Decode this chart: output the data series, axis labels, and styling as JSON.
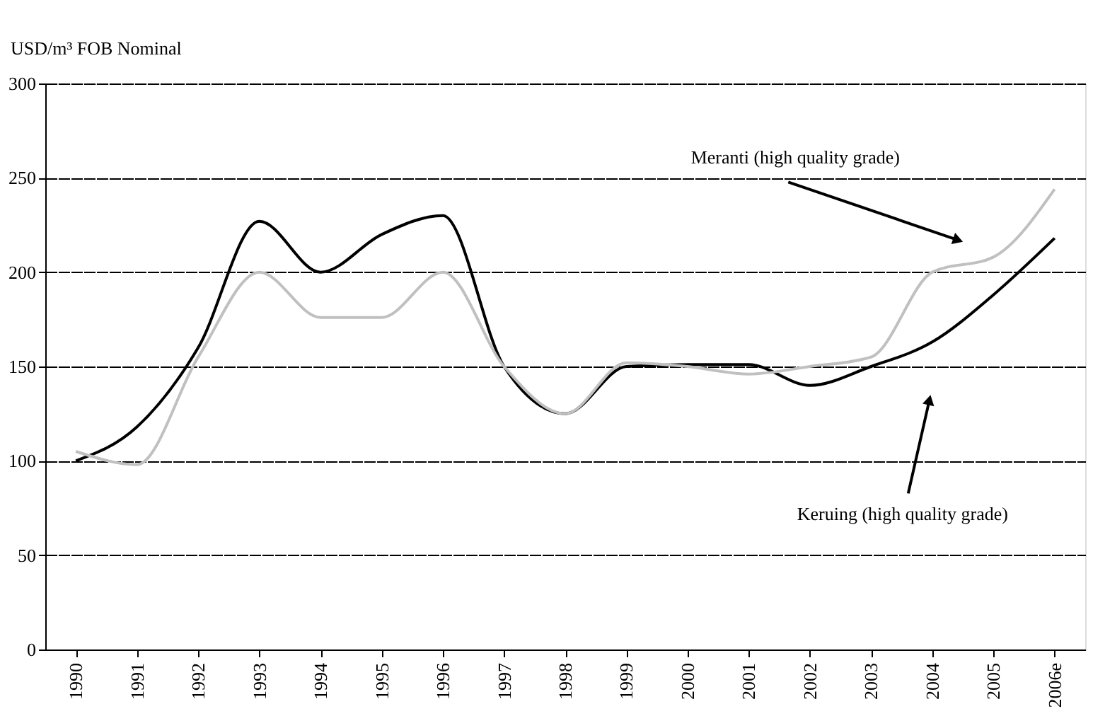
{
  "chart_data": {
    "type": "line",
    "ylabel": "USD/m³ FOB Nominal",
    "categories": [
      "1990",
      "1991",
      "1992",
      "1993",
      "1994",
      "1995",
      "1996",
      "1997",
      "1998",
      "1999",
      "2000",
      "2001",
      "2002",
      "2003",
      "2004",
      "2005",
      "2006e"
    ],
    "series": [
      {
        "name": "Keruing (high quality grade)",
        "color": "#000000",
        "values": [
          100,
          118,
          160,
          227,
          200,
          220,
          230,
          150,
          125,
          150,
          151,
          151,
          140,
          150,
          163,
          188,
          218
        ]
      },
      {
        "name": "Meranti (high quality grade)",
        "color": "#c0c0c0",
        "values": [
          105,
          98,
          155,
          200,
          176,
          176,
          200,
          150,
          125,
          152,
          150,
          146,
          150,
          155,
          200,
          208,
          244
        ]
      }
    ],
    "ylim": [
      0,
      300
    ],
    "yticks": [
      0,
      50,
      100,
      150,
      200,
      250,
      300
    ],
    "grid": "y",
    "marker": "none",
    "line_style": "solid"
  }
}
